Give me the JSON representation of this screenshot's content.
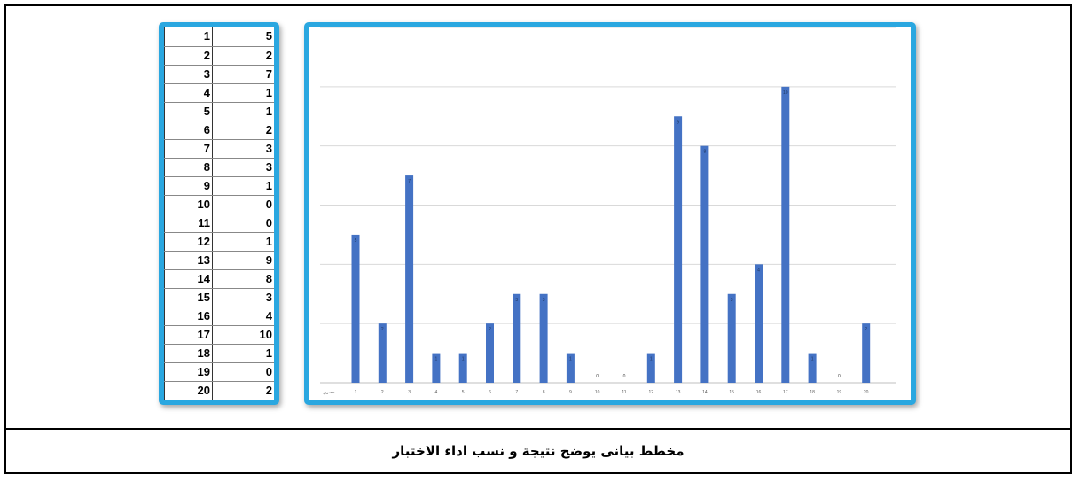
{
  "caption": "مخطط بيانى يوضح نتيجة و نسب اداء الاختبار",
  "table": {
    "rows": [
      [
        "1",
        "5"
      ],
      [
        "2",
        "2"
      ],
      [
        "3",
        "7"
      ],
      [
        "4",
        "1"
      ],
      [
        "5",
        "1"
      ],
      [
        "6",
        "2"
      ],
      [
        "7",
        "3"
      ],
      [
        "8",
        "3"
      ],
      [
        "9",
        "1"
      ],
      [
        "10",
        "0"
      ],
      [
        "11",
        "0"
      ],
      [
        "12",
        "1"
      ],
      [
        "13",
        "9"
      ],
      [
        "14",
        "8"
      ],
      [
        "15",
        "3"
      ],
      [
        "16",
        "4"
      ],
      [
        "17",
        "10"
      ],
      [
        "18",
        "1"
      ],
      [
        "19",
        "0"
      ],
      [
        "20",
        "2"
      ]
    ]
  },
  "chart_data": {
    "type": "bar",
    "categories": [
      "1",
      "2",
      "3",
      "4",
      "5",
      "6",
      "7",
      "8",
      "9",
      "10",
      "11",
      "12",
      "13",
      "14",
      "15",
      "16",
      "17",
      "18",
      "19",
      "20"
    ],
    "values": [
      5,
      2,
      7,
      1,
      1,
      2,
      3,
      3,
      1,
      0,
      0,
      1,
      9,
      8,
      3,
      4,
      10,
      1,
      0,
      2
    ],
    "title": "",
    "xlabel": "",
    "ylabel": "",
    "axis_stub_label": "مصري",
    "ylim": [
      0,
      12
    ],
    "grid": true,
    "bar_color": "#4472c4",
    "grid_color": "#d9d9d9"
  }
}
